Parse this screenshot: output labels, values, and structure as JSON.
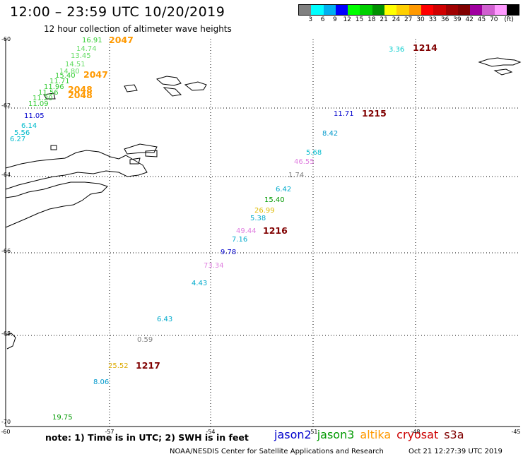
{
  "title": "12:00 – 23:59 UTC 10/20/2019",
  "subtitle": "12 hour collection of altimeter wave heights",
  "color_scale": {
    "colors": [
      "#808080",
      "#00ffff",
      "#00b0f0",
      "#0000ff",
      "#00ff00",
      "#00d000",
      "#009000",
      "#ffff00",
      "#ffd000",
      "#ff9900",
      "#ff0000",
      "#d00000",
      "#a00000",
      "#800000",
      "#a000a0",
      "#d060d0",
      "#ff99ff",
      "#000000"
    ],
    "labels": [
      "3",
      "6",
      "9",
      "12",
      "15",
      "18",
      "21",
      "24",
      "27",
      "30",
      "33",
      "36",
      "39",
      "42",
      "45",
      "70",
      "(ft)"
    ]
  },
  "axes": {
    "lat_labels": [
      "-60",
      "-62",
      "-64",
      "-66",
      "-68",
      "-70"
    ],
    "lon_labels": [
      "-60",
      "-57",
      "-54",
      "-51",
      "-48",
      "-45"
    ]
  },
  "observations": [
    {
      "text": "16.91",
      "color": "#33cc33"
    },
    {
      "text": "14.74",
      "color": "#66dd66"
    },
    {
      "text": "13.45",
      "color": "#66dd66"
    },
    {
      "text": "14.51",
      "color": "#66dd66"
    },
    {
      "text": "14.80",
      "color": "#66dd66"
    },
    {
      "text": "15.40",
      "color": "#33cc33"
    },
    {
      "text": "11.71",
      "color": "#33cc33"
    },
    {
      "text": "11.96",
      "color": "#33cc33"
    },
    {
      "text": "11.56",
      "color": "#33cc33"
    },
    {
      "text": "11.20",
      "color": "#33cc33"
    },
    {
      "text": "11.09",
      "color": "#33cc33"
    },
    {
      "text": "11.05",
      "color": "#0000cc"
    },
    {
      "text": "6.14",
      "color": "#00bbcc"
    },
    {
      "text": "5.56",
      "color": "#00bbcc"
    },
    {
      "text": "6.27",
      "color": "#00bbcc"
    },
    {
      "text": "3.36",
      "color": "#00cccc"
    },
    {
      "text": "11.71",
      "color": "#0000cc"
    },
    {
      "text": "8.42",
      "color": "#0099cc"
    },
    {
      "text": "5.68",
      "color": "#00bbcc"
    },
    {
      "text": "46.55",
      "color": "#e080e0"
    },
    {
      "text": "1.74",
      "color": "#808080"
    },
    {
      "text": "6.42",
      "color": "#00aacc"
    },
    {
      "text": "15.40",
      "color": "#009900"
    },
    {
      "text": "26.99",
      "color": "#ddbb00"
    },
    {
      "text": "5.38",
      "color": "#00aacc"
    },
    {
      "text": "49.44",
      "color": "#e080e0"
    },
    {
      "text": "7.16",
      "color": "#00aacc"
    },
    {
      "text": "9.78",
      "color": "#0000cc"
    },
    {
      "text": "73.34",
      "color": "#e080e0"
    },
    {
      "text": "4.43",
      "color": "#00aacc"
    },
    {
      "text": "6.43",
      "color": "#00aacc"
    },
    {
      "text": "0.59",
      "color": "#808080"
    },
    {
      "text": "25.52",
      "color": "#ddaa00"
    },
    {
      "text": "8.06",
      "color": "#0099cc"
    },
    {
      "text": "19.75",
      "color": "#009900"
    }
  ],
  "passes": [
    {
      "text": "2047",
      "color": "#ff9900"
    },
    {
      "text": "2047",
      "color": "#ff9900"
    },
    {
      "text": "2048",
      "color": "#ff9900"
    },
    {
      "text": "2048",
      "color": "#ff9900"
    },
    {
      "text": "1214",
      "color": "#800000"
    },
    {
      "text": "1215",
      "color": "#800000"
    },
    {
      "text": "1216",
      "color": "#800000"
    },
    {
      "text": "1217",
      "color": "#800000"
    }
  ],
  "note": "note: 1) Time is in UTC; 2) SWH is in feet",
  "legend": [
    {
      "label": "jason2",
      "color": "#0000cc"
    },
    {
      "label": "jason3",
      "color": "#009900"
    },
    {
      "label": "altika",
      "color": "#ff9900"
    },
    {
      "label": "cryosat",
      "color": "#cc0000"
    },
    {
      "label": "s3a",
      "color": "#800000"
    }
  ],
  "credit": "NOAA/NESDIS Center for Satellite Applications and Research",
  "timestamp": "Oct 21 12:27:39 UTC 2019"
}
